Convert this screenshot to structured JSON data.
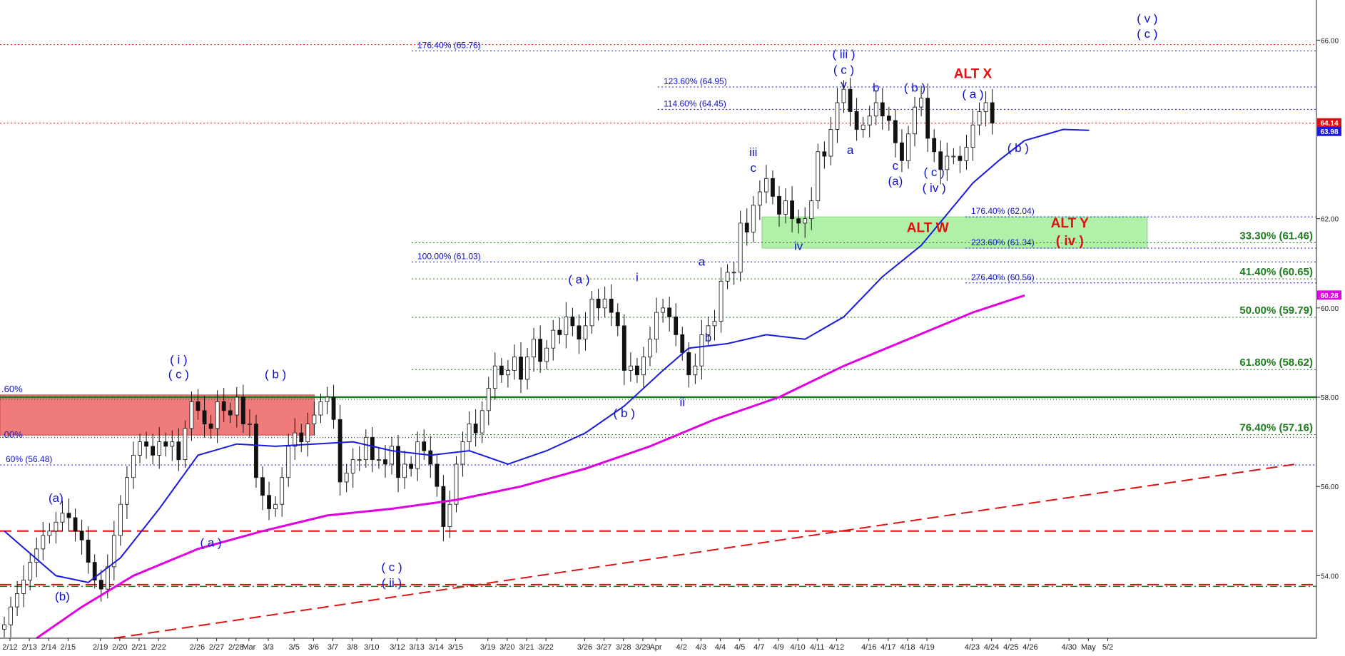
{
  "chart_data": {
    "type": "candlestick",
    "title": "",
    "xlabel": "",
    "ylabel": "",
    "ylim": [
      52.6,
      66.9
    ],
    "x_ticks": [
      "2/12",
      "2/13",
      "2/14",
      "2/15",
      "2/19",
      "2/20",
      "2/21",
      "2/22",
      "2/26",
      "2/27",
      "2/28",
      "Mar",
      "3/3",
      "3/5",
      "3/6",
      "3/7",
      "3/8",
      "3/10",
      "3/12",
      "3/13",
      "3/14",
      "3/15",
      "3/19",
      "3/20",
      "3/21",
      "3/22",
      "3/26",
      "3/27",
      "3/28",
      "3/29",
      "Apr",
      "4/2",
      "4/3",
      "4/4",
      "4/5",
      "4/7",
      "4/9",
      "4/10",
      "4/11",
      "4/12",
      "4/16",
      "4/17",
      "4/18",
      "4/19",
      "4/23",
      "4/24",
      "4/25",
      "4/26",
      "4/30",
      "May",
      "5/2"
    ],
    "y_ticks": [
      {
        "value": 54.0,
        "label": "54.00"
      },
      {
        "value": 56.0,
        "label": "56.00"
      },
      {
        "value": 58.0,
        "label": "58.00"
      },
      {
        "value": 60.0,
        "label": "60.00"
      },
      {
        "value": 62.0,
        "label": "62.00"
      },
      {
        "value": 66.0,
        "label": "66.00"
      }
    ],
    "price_badges": [
      {
        "label": "64.14",
        "value": 64.14,
        "color": "#e01010"
      },
      {
        "label": "63.98",
        "value": 63.98,
        "color": "#1a1ae0"
      },
      {
        "label": "60.28",
        "value": 60.28,
        "color": "#e000e0"
      }
    ],
    "price_series": {
      "name": "",
      "close": [
        52.9,
        53.3,
        53.6,
        53.9,
        54.3,
        54.6,
        54.9,
        55.0,
        55.2,
        55.4,
        55.3,
        55.0,
        54.8,
        54.3,
        53.9,
        53.7,
        54.2,
        54.9,
        55.6,
        56.2,
        56.7,
        57.0,
        56.9,
        56.7,
        57.0,
        56.9,
        57.0,
        56.6,
        57.3,
        57.9,
        57.7,
        57.4,
        57.3,
        57.9,
        57.7,
        57.6,
        58.0,
        57.4,
        57.4,
        56.2,
        55.8,
        55.5,
        55.6,
        56.2,
        56.9,
        57.2,
        57.0,
        57.4,
        57.6,
        57.9,
        58.0,
        57.5,
        56.1,
        56.3,
        56.6,
        56.6,
        57.1,
        56.6,
        56.6,
        56.5,
        56.9,
        56.2,
        56.5,
        56.4,
        57.0,
        56.8,
        56.5,
        56.0,
        55.1,
        55.6,
        56.5,
        57.0,
        57.4,
        57.2,
        57.7,
        58.2,
        58.7,
        58.5,
        58.6,
        58.9,
        58.4,
        58.9,
        59.3,
        58.8,
        59.1,
        59.5,
        59.4,
        59.8,
        59.6,
        59.3,
        59.6,
        60.2,
        60.0,
        60.2,
        59.9,
        59.6,
        58.6,
        58.7,
        58.5,
        58.9,
        59.3,
        59.9,
        60.0,
        59.8,
        59.4,
        59.0,
        58.5,
        58.7,
        59.4,
        59.6,
        59.7,
        60.6,
        60.8,
        60.8,
        61.9,
        61.7,
        62.3,
        62.6,
        62.9,
        62.5,
        62.1,
        62.4,
        62.0,
        61.9,
        62.0,
        62.4,
        63.5,
        63.4,
        64.0,
        64.6,
        64.9,
        64.4,
        64.0,
        64.1,
        64.3,
        64.6,
        64.3,
        64.2,
        63.7,
        63.3,
        63.9,
        64.5,
        64.7,
        63.8,
        63.5,
        63.1,
        63.4,
        63.4,
        63.3,
        63.6,
        64.1,
        64.4,
        64.6,
        64.14
      ]
    },
    "moving_averages": [
      {
        "name": "",
        "color": "#1a1ae0",
        "points": [
          [
            0,
            55.0
          ],
          [
            8,
            54.0
          ],
          [
            13,
            53.85
          ],
          [
            18,
            54.4
          ],
          [
            24,
            55.5
          ],
          [
            30,
            56.7
          ],
          [
            36,
            56.95
          ],
          [
            42,
            56.9
          ],
          [
            48,
            56.95
          ],
          [
            54,
            57.0
          ],
          [
            60,
            56.8
          ],
          [
            66,
            56.7
          ],
          [
            72,
            56.8
          ],
          [
            78,
            56.5
          ],
          [
            84,
            56.8
          ],
          [
            90,
            57.2
          ],
          [
            96,
            57.8
          ],
          [
            102,
            58.6
          ],
          [
            106,
            59.1
          ],
          [
            112,
            59.2
          ],
          [
            118,
            59.4
          ],
          [
            124,
            59.3
          ],
          [
            130,
            59.8
          ],
          [
            136,
            60.7
          ],
          [
            142,
            61.4
          ],
          [
            146,
            62.1
          ],
          [
            150,
            62.8
          ],
          [
            154,
            63.3
          ],
          [
            158,
            63.75
          ],
          [
            164,
            64.0
          ],
          [
            168,
            63.98
          ]
        ]
      },
      {
        "name": "",
        "color": "#e000e0",
        "points": [
          [
            5,
            52.6
          ],
          [
            12,
            53.3
          ],
          [
            20,
            54.0
          ],
          [
            30,
            54.6
          ],
          [
            40,
            55.0
          ],
          [
            50,
            55.35
          ],
          [
            60,
            55.5
          ],
          [
            70,
            55.7
          ],
          [
            80,
            56.0
          ],
          [
            90,
            56.4
          ],
          [
            100,
            56.9
          ],
          [
            110,
            57.5
          ],
          [
            120,
            58.0
          ],
          [
            130,
            58.7
          ],
          [
            140,
            59.3
          ],
          [
            150,
            59.9
          ],
          [
            158,
            60.28
          ]
        ]
      }
    ],
    "horizontal_levels": [
      {
        "value": 65.9,
        "style": "red-dotted"
      },
      {
        "value": 64.14,
        "style": "red-dotted"
      },
      {
        "value": 58.0,
        "style": "green-solid"
      },
      {
        "value": 57.95,
        "style": "black-dotted"
      },
      {
        "value": 57.1,
        "style": "black-dotted"
      },
      {
        "value": 55.0,
        "style": "red-dashed"
      },
      {
        "value": 53.8,
        "style": "red-dashed"
      },
      {
        "value": 53.76,
        "style": "green-dashdot"
      }
    ],
    "trendline": {
      "from": [
        17,
        52.6
      ],
      "to": [
        200,
        56.5
      ],
      "style": "red-dashed"
    },
    "fib_extensions": [
      {
        "label": "176.40% (65.76)",
        "value": 65.76
      },
      {
        "label": "123.60% (64.95)",
        "value": 64.95
      },
      {
        "label": "114.60% (64.45)",
        "value": 64.45
      },
      {
        "label": "100.00% (61.03)",
        "value": 61.03
      },
      {
        "label": "176.40% (62.04)",
        "value": 62.04
      },
      {
        "label": "223.60% (61.34)",
        "value": 61.34
      },
      {
        "label": "276.40% (60.56)",
        "value": 60.56
      },
      {
        "label": "60% (56.48)",
        "value": 56.48
      }
    ],
    "fib_retracements": [
      {
        "label": "33.30% (61.46)",
        "value": 61.46
      },
      {
        "label": "41.40% (60.65)",
        "value": 60.65
      },
      {
        "label": "50.00% (59.79)",
        "value": 59.79
      },
      {
        "label": "61.80% (58.62)",
        "value": 58.62
      },
      {
        "label": "76.40% (57.16)",
        "value": 57.16
      }
    ],
    "zones": [
      {
        "name": "resistance-zone",
        "color": "#f07b7b",
        "x_start": 0,
        "x_end": 48,
        "y_top": 58.05,
        "y_bottom": 57.15,
        "left_labels": [
          ".60%",
          ".00%"
        ]
      },
      {
        "name": "support-zone",
        "color": "#b0f0a8",
        "x_start": 118,
        "x_end": 177,
        "y_top": 62.04,
        "y_bottom": 61.34
      }
    ],
    "wave_labels": [
      {
        "text": "(a)",
        "x": 8,
        "y": 55.65,
        "color": "blue"
      },
      {
        "text": "(b)",
        "x": 9,
        "y": 53.45,
        "color": "blue"
      },
      {
        "text": "( i )",
        "x": 27,
        "y": 58.75,
        "color": "blue"
      },
      {
        "text": "( c )",
        "x": 27,
        "y": 58.42,
        "color": "blue"
      },
      {
        "text": "( b )",
        "x": 42,
        "y": 58.42,
        "color": "blue"
      },
      {
        "text": "( a )",
        "x": 32,
        "y": 54.65,
        "color": "blue"
      },
      {
        "text": "( c )",
        "x": 60,
        "y": 54.1,
        "color": "blue"
      },
      {
        "text": "( ii )",
        "x": 60,
        "y": 53.75,
        "color": "blue"
      },
      {
        "text": "( a )",
        "x": 89,
        "y": 60.55,
        "color": "blue"
      },
      {
        "text": "( b )",
        "x": 96,
        "y": 57.55,
        "color": "blue"
      },
      {
        "text": "i",
        "x": 98,
        "y": 60.6,
        "color": "blue"
      },
      {
        "text": "ii",
        "x": 105,
        "y": 57.8,
        "color": "blue"
      },
      {
        "text": "a",
        "x": 108,
        "y": 60.95,
        "color": "blue"
      },
      {
        "text": "b",
        "x": 109,
        "y": 59.25,
        "color": "blue"
      },
      {
        "text": "iii",
        "x": 116,
        "y": 63.4,
        "color": "blue"
      },
      {
        "text": "c",
        "x": 116,
        "y": 63.05,
        "color": "blue"
      },
      {
        "text": "iv",
        "x": 123,
        "y": 61.3,
        "color": "blue"
      },
      {
        "text": "( iii )",
        "x": 130,
        "y": 65.6,
        "color": "blue"
      },
      {
        "text": "( c )",
        "x": 130,
        "y": 65.25,
        "color": "blue"
      },
      {
        "text": "v",
        "x": 130,
        "y": 64.92,
        "color": "blue"
      },
      {
        "text": "a",
        "x": 131,
        "y": 63.45,
        "color": "blue"
      },
      {
        "text": "b",
        "x": 135,
        "y": 64.85,
        "color": "blue"
      },
      {
        "text": "c",
        "x": 138,
        "y": 63.1,
        "color": "blue"
      },
      {
        "text": "(a)",
        "x": 138,
        "y": 62.75,
        "color": "blue"
      },
      {
        "text": "( b )",
        "x": 141,
        "y": 64.85,
        "color": "blue"
      },
      {
        "text": "( c )",
        "x": 144,
        "y": 62.95,
        "color": "blue"
      },
      {
        "text": "( iv )",
        "x": 144,
        "y": 62.6,
        "color": "blue"
      },
      {
        "text": "( a )",
        "x": 150,
        "y": 64.7,
        "color": "blue"
      },
      {
        "text": "( b )",
        "x": 157,
        "y": 63.5,
        "color": "blue"
      },
      {
        "text": "( v )",
        "x": 177,
        "y": 66.4,
        "color": "blue"
      },
      {
        "text": "( c )",
        "x": 177,
        "y": 66.05,
        "color": "blue"
      },
      {
        "text": "ALT X",
        "x": 150,
        "y": 65.15,
        "color": "red"
      },
      {
        "text": "ALT W",
        "x": 143,
        "y": 61.7,
        "color": "red"
      },
      {
        "text": "ALT Y",
        "x": 165,
        "y": 61.8,
        "color": "red"
      },
      {
        "text": "( iv )",
        "x": 165,
        "y": 61.4,
        "color": "red"
      }
    ]
  }
}
